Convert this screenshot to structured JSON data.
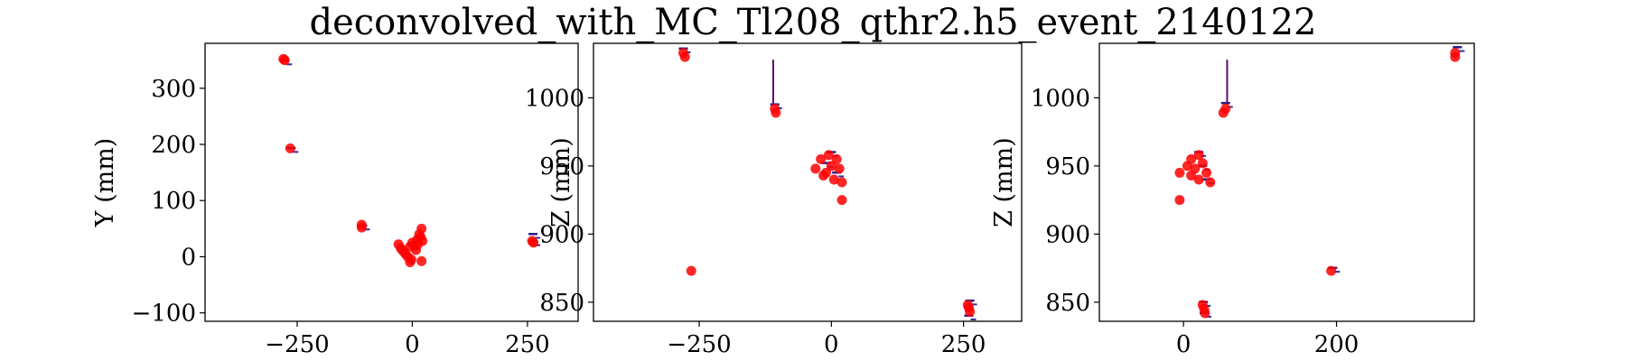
{
  "figure": {
    "suptitle": "deconvolved_with_MC_Tl208_qthr2.h5_event_2140122"
  },
  "chart_data": [
    {
      "type": "scatter",
      "title": "",
      "xlabel": "",
      "ylabel": "Y (mm)",
      "xlim": [
        -450,
        360
      ],
      "ylim": [
        -115,
        380
      ],
      "xticks": [
        -250,
        0,
        250
      ],
      "yticks": [
        -100,
        0,
        100,
        200,
        300
      ],
      "tick_labels_x": [
        "−250",
        "0",
        "250"
      ],
      "tick_labels_y": [
        "−100",
        "0",
        "100",
        "200",
        "300"
      ],
      "grid": false,
      "series": [
        {
          "color": "#ff0000",
          "points": [
            [
              -280,
              352
            ],
            [
              -277,
              350
            ],
            [
              -265,
              193
            ],
            [
              -110,
              57
            ],
            [
              -110,
              52
            ],
            [
              -30,
              22
            ],
            [
              -25,
              15
            ],
            [
              -20,
              10
            ],
            [
              -15,
              5
            ],
            [
              -10,
              0
            ],
            [
              -5,
              18
            ],
            [
              0,
              25
            ],
            [
              5,
              20
            ],
            [
              10,
              30
            ],
            [
              15,
              40
            ],
            [
              20,
              50
            ],
            [
              18,
              35
            ],
            [
              8,
              12
            ],
            [
              -2,
              -5
            ],
            [
              -5,
              -10
            ],
            [
              20,
              -8
            ],
            [
              12,
              22
            ],
            [
              22,
              28
            ],
            [
              260,
              28
            ],
            [
              263,
              25
            ]
          ]
        }
      ],
      "deposits": [
        {
          "points": [
            [
              -277,
              349
            ],
            [
              -263,
              193
            ],
            [
              -108,
              55
            ],
            [
              0,
              20
            ],
            [
              262,
              27
            ],
            [
              262,
              40
            ]
          ]
        }
      ]
    },
    {
      "type": "scatter",
      "title": "",
      "xlabel": "",
      "ylabel": "Z (mm)",
      "xlim": [
        -450,
        360
      ],
      "ylim": [
        836,
        1040
      ],
      "xticks": [
        -250,
        0,
        250
      ],
      "yticks": [
        850,
        900,
        950,
        1000
      ],
      "tick_labels_x": [
        "−250",
        "0",
        "250"
      ],
      "tick_labels_y": [
        "850",
        "900",
        "950",
        "1000"
      ],
      "grid": false,
      "series": [
        {
          "color": "#ff0000",
          "points": [
            [
              -280,
              1033
            ],
            [
              -277,
              1030
            ],
            [
              -107,
              992
            ],
            [
              -105,
              989
            ],
            [
              -30,
              948
            ],
            [
              -20,
              955
            ],
            [
              -10,
              945
            ],
            [
              0,
              950
            ],
            [
              5,
              940
            ],
            [
              10,
              955
            ],
            [
              15,
              948
            ],
            [
              -15,
              943
            ],
            [
              20,
              938
            ],
            [
              -5,
              958
            ],
            [
              20,
              925
            ],
            [
              -265,
              873
            ],
            [
              260,
              846
            ],
            [
              262,
              843
            ],
            [
              258,
              848
            ]
          ]
        }
      ],
      "deposits": [
        {
          "points": [
            [
              -280,
              1036
            ],
            [
              -107,
              995
            ],
            [
              0,
              960
            ],
            [
              -10,
              952
            ],
            [
              10,
              945
            ],
            [
              262,
              851
            ],
            [
              260,
              840
            ]
          ]
        }
      ],
      "lines": [
        {
          "color": "#5b0f6e",
          "points": [
            [
              -110,
              1028
            ],
            [
              -110,
              995
            ]
          ]
        }
      ]
    },
    {
      "type": "scatter",
      "title": "",
      "xlabel": "",
      "ylabel": "Z (mm)",
      "xlim": [
        -110,
        380
      ],
      "ylim": [
        836,
        1040
      ],
      "xticks": [
        0,
        200
      ],
      "yticks": [
        850,
        900,
        950,
        1000
      ],
      "tick_labels_x": [
        "0",
        "200"
      ],
      "tick_labels_y": [
        "850",
        "900",
        "950",
        "1000"
      ],
      "grid": false,
      "series": [
        {
          "color": "#ff0000",
          "points": [
            [
              -5,
              945
            ],
            [
              5,
              950
            ],
            [
              10,
              955
            ],
            [
              15,
              948
            ],
            [
              20,
              940
            ],
            [
              25,
              952
            ],
            [
              30,
              945
            ],
            [
              35,
              938
            ],
            [
              10,
              943
            ],
            [
              20,
              958
            ],
            [
              -5,
              925
            ],
            [
              55,
              992
            ],
            [
              52,
              989
            ],
            [
              193,
              873
            ],
            [
              25,
              848
            ],
            [
              27,
              845
            ],
            [
              28,
              842
            ],
            [
              355,
              1033
            ],
            [
              355,
              1030
            ]
          ]
        }
      ],
      "deposits": [
        {
          "points": [
            [
              20,
              960
            ],
            [
              25,
              950
            ],
            [
              30,
              940
            ],
            [
              55,
              996
            ],
            [
              195,
              875
            ],
            [
              26,
              850
            ],
            [
              27,
              842
            ],
            [
              358,
              1037
            ]
          ]
        }
      ],
      "lines": [
        {
          "color": "#5b0f6e",
          "points": [
            [
              57,
              1028
            ],
            [
              57,
              995
            ]
          ]
        }
      ]
    }
  ]
}
